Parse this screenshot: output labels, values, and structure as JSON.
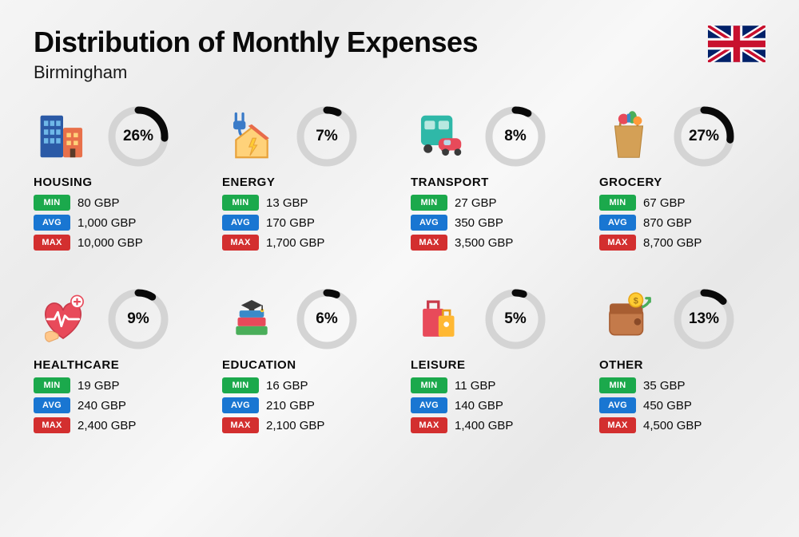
{
  "title": "Distribution of Monthly Expenses",
  "subtitle": "Birmingham",
  "badge_labels": {
    "min": "MIN",
    "avg": "AVG",
    "max": "MAX"
  },
  "colors": {
    "ring_track": "#d4d4d4",
    "ring_fill": "#0a0a0a",
    "badge_min": "#1ba94c",
    "badge_avg": "#1976d2",
    "badge_max": "#d32f2f",
    "text": "#0a0a0a",
    "background": "#f2f2f2"
  },
  "donut": {
    "size": 78,
    "stroke_width": 9,
    "radius": 33
  },
  "categories": [
    {
      "key": "housing",
      "name": "HOUSING",
      "pct": 26,
      "pct_label": "26%",
      "min": "80 GBP",
      "avg": "1,000 GBP",
      "max": "10,000 GBP",
      "icon": "housing"
    },
    {
      "key": "energy",
      "name": "ENERGY",
      "pct": 7,
      "pct_label": "7%",
      "min": "13 GBP",
      "avg": "170 GBP",
      "max": "1,700 GBP",
      "icon": "energy"
    },
    {
      "key": "transport",
      "name": "TRANSPORT",
      "pct": 8,
      "pct_label": "8%",
      "min": "27 GBP",
      "avg": "350 GBP",
      "max": "3,500 GBP",
      "icon": "transport"
    },
    {
      "key": "grocery",
      "name": "GROCERY",
      "pct": 27,
      "pct_label": "27%",
      "min": "67 GBP",
      "avg": "870 GBP",
      "max": "8,700 GBP",
      "icon": "grocery"
    },
    {
      "key": "healthcare",
      "name": "HEALTHCARE",
      "pct": 9,
      "pct_label": "9%",
      "min": "19 GBP",
      "avg": "240 GBP",
      "max": "2,400 GBP",
      "icon": "healthcare"
    },
    {
      "key": "education",
      "name": "EDUCATION",
      "pct": 6,
      "pct_label": "6%",
      "min": "16 GBP",
      "avg": "210 GBP",
      "max": "2,100 GBP",
      "icon": "education"
    },
    {
      "key": "leisure",
      "name": "LEISURE",
      "pct": 5,
      "pct_label": "5%",
      "min": "11 GBP",
      "avg": "140 GBP",
      "max": "1,400 GBP",
      "icon": "leisure"
    },
    {
      "key": "other",
      "name": "OTHER",
      "pct": 13,
      "pct_label": "13%",
      "min": "35 GBP",
      "avg": "450 GBP",
      "max": "4,500 GBP",
      "icon": "other"
    }
  ]
}
